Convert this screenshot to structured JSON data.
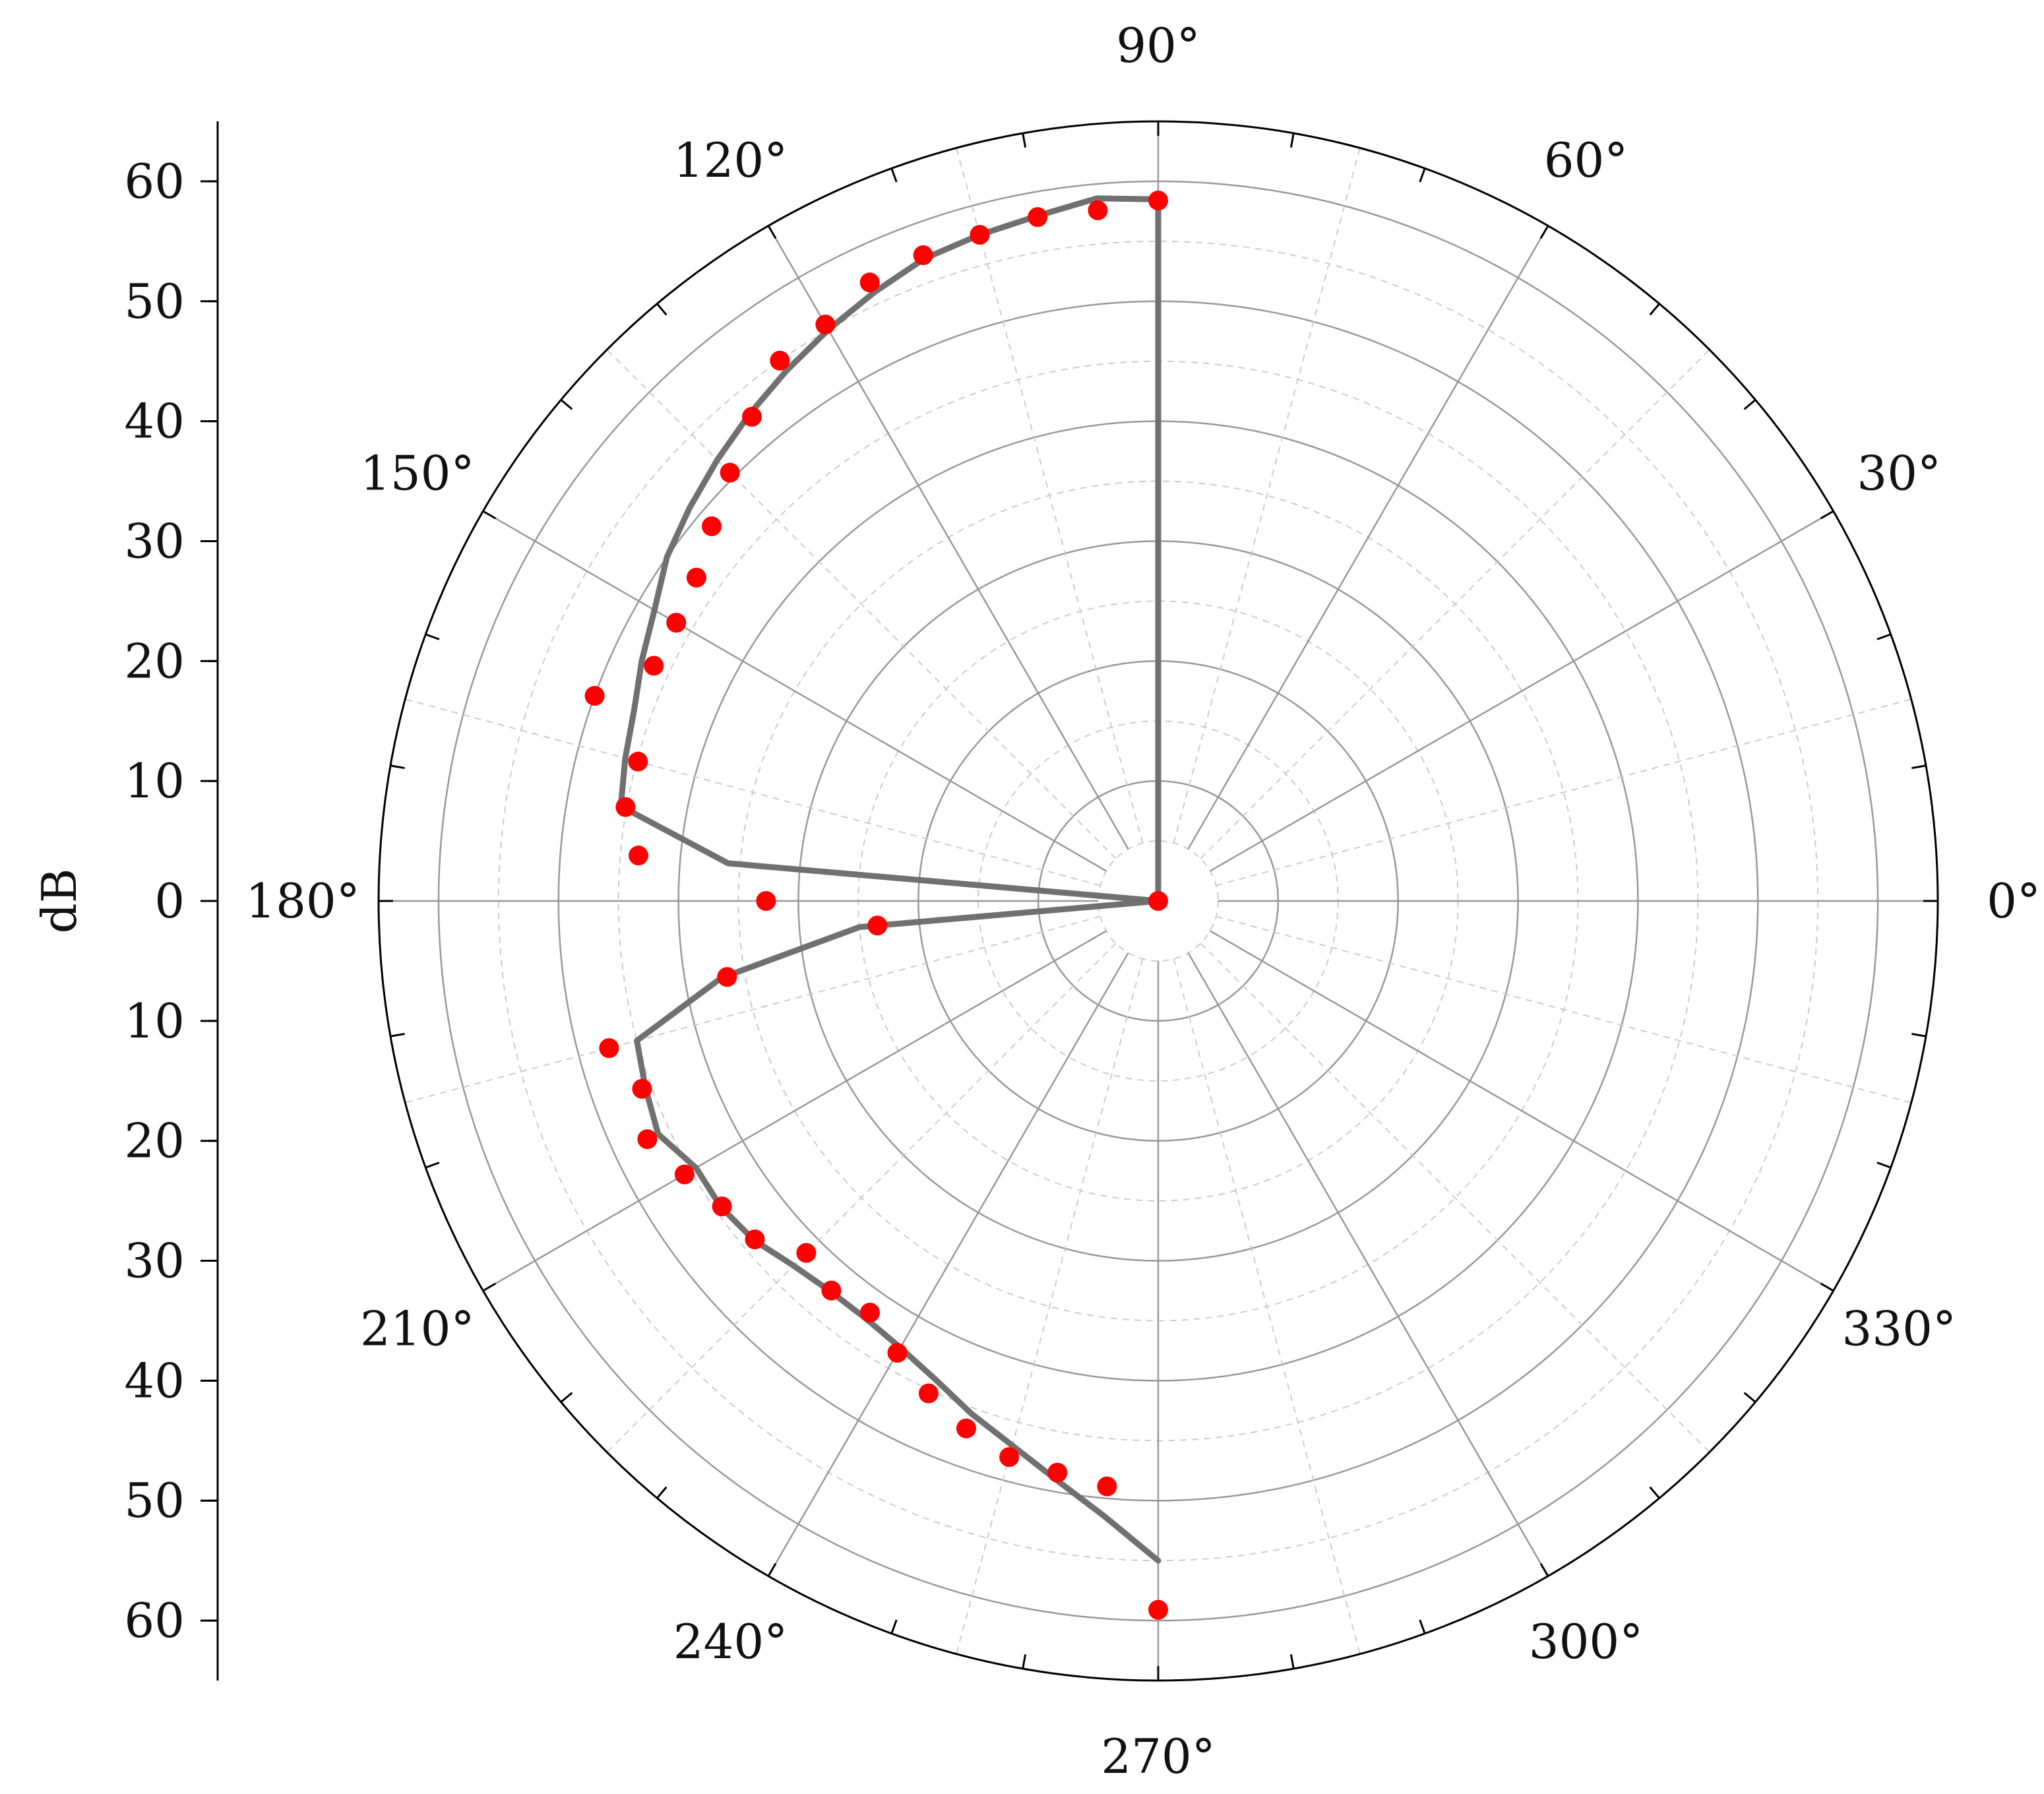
{
  "chart_data": {
    "type": "polar",
    "radial_unit": "dB",
    "radial_range": [
      0,
      65
    ],
    "radial_ring_step": 10,
    "radial_dashed_step": 5,
    "angular_label_step_deg": 30,
    "angular_spoke_step_deg": 30,
    "angular_dashed_step_deg": 15,
    "angular_tick_step_deg": 10,
    "angle_labels": [
      "0°",
      "30°",
      "60°",
      "90°",
      "120°",
      "150°",
      "180°",
      "210°",
      "240°",
      "270°",
      "300°",
      "330°"
    ],
    "left_axis": {
      "label": "dB",
      "upper_ticks": [
        "60",
        "50",
        "40",
        "30",
        "20",
        "10"
      ],
      "center_tick": "0",
      "lower_ticks": [
        "10",
        "20",
        "30",
        "40",
        "50",
        "60"
      ]
    },
    "grid": true,
    "series": [
      {
        "kind": "points",
        "color": "#ff0000",
        "points": [
          [
            90,
            58.4
          ],
          [
            95,
            57.8
          ],
          [
            100,
            57.9
          ],
          [
            105,
            57.5
          ],
          [
            110,
            57.3
          ],
          [
            115,
            56.9
          ],
          [
            120,
            55.5
          ],
          [
            125,
            55.0
          ],
          [
            130,
            52.7
          ],
          [
            135,
            50.5
          ],
          [
            140,
            48.6
          ],
          [
            145,
            47.0
          ],
          [
            150,
            46.4
          ],
          [
            155,
            46.4
          ],
          [
            160,
            50.0
          ],
          [
            165,
            44.9
          ],
          [
            170,
            45.1
          ],
          [
            175,
            43.5
          ],
          [
            180,
            32.7
          ],
          [
            185,
            23.5
          ],
          [
            190,
            36.5
          ],
          [
            195,
            47.4
          ],
          [
            200,
            45.8
          ],
          [
            205,
            47.0
          ],
          [
            210,
            45.6
          ],
          [
            215,
            44.4
          ],
          [
            220,
            43.9
          ],
          [
            225,
            41.5
          ],
          [
            230,
            42.4
          ],
          [
            235,
            41.9
          ],
          [
            240,
            43.5
          ],
          [
            245,
            45.3
          ],
          [
            250,
            46.8
          ],
          [
            255,
            48.0
          ],
          [
            260,
            48.4
          ],
          [
            265,
            49.0
          ],
          [
            270,
            59.1
          ],
          [
            0,
            0
          ]
        ]
      },
      {
        "kind": "line",
        "color": "#707070",
        "points": [
          [
            0,
            0
          ],
          [
            90,
            58.5
          ],
          [
            95,
            58.8
          ],
          [
            100,
            58.0
          ],
          [
            105,
            57.5
          ],
          [
            110,
            57.0
          ],
          [
            115,
            56.0
          ],
          [
            120,
            55.0
          ],
          [
            125,
            54.0
          ],
          [
            130,
            53.0
          ],
          [
            135,
            52.0
          ],
          [
            140,
            51.0
          ],
          [
            145,
            50.0
          ],
          [
            150,
            48.5
          ],
          [
            155,
            47.5
          ],
          [
            160,
            46.5
          ],
          [
            165,
            46.0
          ],
          [
            170,
            45.5
          ],
          [
            175,
            36.0
          ],
          [
            180,
            0
          ],
          [
            185,
            25.0
          ],
          [
            190,
            37.0
          ],
          [
            195,
            45.0
          ],
          [
            200,
            45.5
          ],
          [
            205,
            46.0
          ],
          [
            210,
            44.5
          ],
          [
            215,
            44.5
          ],
          [
            220,
            44.0
          ],
          [
            225,
            43.0
          ],
          [
            230,
            42.5
          ],
          [
            235,
            42.5
          ],
          [
            240,
            43.0
          ],
          [
            245,
            44.0
          ],
          [
            250,
            45.5
          ],
          [
            255,
            47.0
          ],
          [
            260,
            49.0
          ],
          [
            265,
            51.5
          ],
          [
            270,
            55.0
          ]
        ]
      }
    ]
  }
}
